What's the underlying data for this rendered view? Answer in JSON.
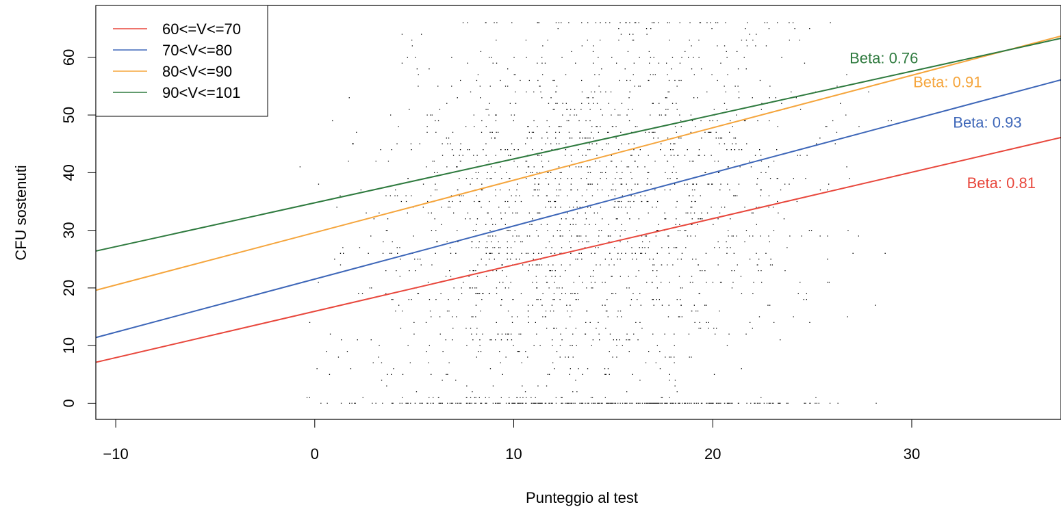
{
  "chart_data": {
    "type": "scatter",
    "title": "",
    "xlabel": "Punteggio al test",
    "ylabel": "CFU sostenuti",
    "xlim": [
      -11,
      37.5
    ],
    "ylim": [
      -2.8,
      69
    ],
    "xticks": [
      -10,
      0,
      10,
      20,
      30
    ],
    "yticks": [
      0,
      10,
      20,
      30,
      40,
      50,
      60
    ],
    "xtick_labels": [
      "−10",
      "0",
      "10",
      "20",
      "30"
    ],
    "ytick_labels": [
      "0",
      "10",
      "20",
      "30",
      "40",
      "50",
      "60"
    ],
    "grid": false,
    "legend_position": "top-left",
    "point_color": "#000000",
    "series": [
      {
        "name": "60<=V<=70",
        "color": "#e8473c",
        "line": {
          "x": [
            -11,
            37.5
          ],
          "y": [
            7.1,
            46.1
          ]
        },
        "annotation": {
          "text": "Beta: 0.81",
          "x": 34.5,
          "y": 37.3
        }
      },
      {
        "name": "70<V<=80",
        "color": "#3d66b8",
        "line": {
          "x": [
            -11,
            37.5
          ],
          "y": [
            11.4,
            56.1
          ]
        },
        "annotation": {
          "text": "Beta: 0.93",
          "x": 33.8,
          "y": 47.8
        }
      },
      {
        "name": "80<V<=90",
        "color": "#f5a53c",
        "line": {
          "x": [
            -11,
            37.5
          ],
          "y": [
            19.6,
            63.7
          ]
        },
        "annotation": {
          "text": "Beta: 0.91",
          "x": 31.8,
          "y": 54.8
        }
      },
      {
        "name": "90<V<=101",
        "color": "#2e7a3e",
        "line": {
          "x": [
            -11,
            37.5
          ],
          "y": [
            26.4,
            63.3
          ]
        },
        "annotation": {
          "text": "Beta: 0.76",
          "x": 28.6,
          "y": 59.0
        }
      }
    ]
  }
}
